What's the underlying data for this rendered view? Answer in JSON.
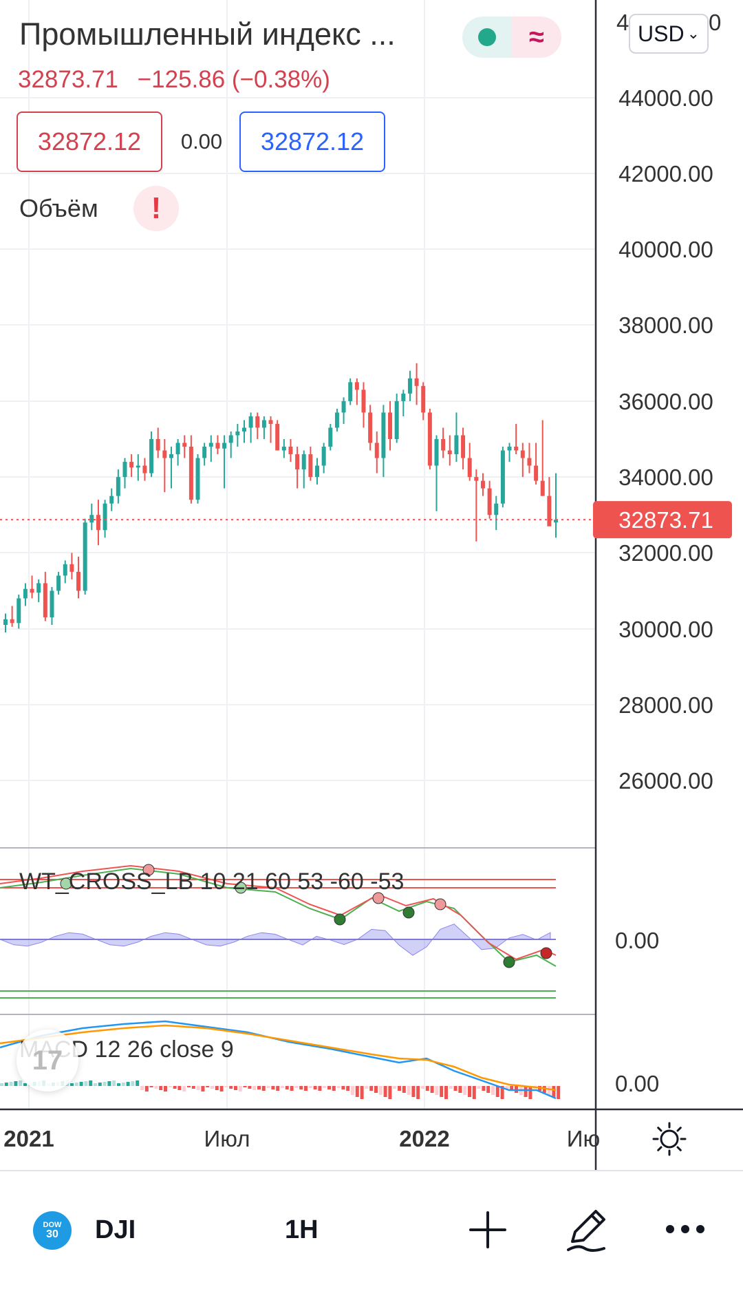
{
  "instrument": {
    "title": "Промышленный индекс ...",
    "last_price": "32873.71",
    "change": "−125.86 (−0.38%)",
    "bid": "32872.12",
    "spread": "0.00",
    "ask": "32872.12",
    "currency": "USD",
    "volume_label": "Объём"
  },
  "colors": {
    "up": "#26a69a",
    "down": "#ef5350",
    "price_tag": "#ef5350",
    "accent_blue": "#2962ff"
  },
  "price_axis": {
    "ticks": [
      "44000.00",
      "42000.00",
      "40000.00",
      "38000.00",
      "36000.00",
      "34000.00",
      "32000.00",
      "30000.00",
      "28000.00",
      "26000.00"
    ],
    "partial_top_tick": "4",
    "partial_top_tick_end": "0",
    "current_tag": "32873.71"
  },
  "time_axis": {
    "labels": [
      "2021",
      "Июл",
      "2022",
      "Ию"
    ]
  },
  "indicators": {
    "wt_label": "WT_CROSS_LB 10 21 60 53 -60 -53",
    "wt_zero": "0.00",
    "macd_label": "MACD 12 26 close 9",
    "macd_zero": "0.00"
  },
  "bottom_bar": {
    "logo_top": "DOW",
    "logo_bottom": "30",
    "symbol": "DJI",
    "interval": "1H",
    "icons": [
      "plus-icon",
      "pencil-icon",
      "more-icon"
    ]
  },
  "chart_data": {
    "type": "candlestick",
    "y_range": [
      24500,
      45500
    ],
    "last_price": 32873.71,
    "candles": [
      [
        30100,
        30400,
        29900,
        30250
      ],
      [
        30250,
        30600,
        30050,
        30150
      ],
      [
        30150,
        30900,
        30000,
        30800
      ],
      [
        30800,
        31200,
        30600,
        31050
      ],
      [
        31050,
        31400,
        30800,
        30950
      ],
      [
        30950,
        31300,
        30700,
        31200
      ],
      [
        31200,
        31500,
        30200,
        30300
      ],
      [
        30300,
        31100,
        30100,
        31000
      ],
      [
        31000,
        31500,
        30900,
        31400
      ],
      [
        31400,
        31800,
        31200,
        31700
      ],
      [
        31700,
        32000,
        31300,
        31500
      ],
      [
        31500,
        31900,
        30800,
        31000
      ],
      [
        31000,
        32900,
        30900,
        32800
      ],
      [
        32800,
        33300,
        32600,
        33000
      ],
      [
        33000,
        33400,
        32200,
        32600
      ],
      [
        32600,
        33400,
        32400,
        33300
      ],
      [
        33300,
        33700,
        33100,
        33500
      ],
      [
        33500,
        34200,
        33300,
        34000
      ],
      [
        34000,
        34500,
        33700,
        34400
      ],
      [
        34400,
        34600,
        34000,
        34250
      ],
      [
        34250,
        34600,
        33900,
        34300
      ],
      [
        34300,
        34500,
        33900,
        34100
      ],
      [
        34100,
        35200,
        34000,
        35000
      ],
      [
        35000,
        35300,
        34500,
        34700
      ],
      [
        34700,
        35000,
        33600,
        34500
      ],
      [
        34500,
        34800,
        33700,
        34600
      ],
      [
        34600,
        35000,
        34300,
        34900
      ],
      [
        34900,
        35100,
        34500,
        34800
      ],
      [
        34800,
        35100,
        33300,
        33400
      ],
      [
        33400,
        34600,
        33300,
        34500
      ],
      [
        34500,
        34900,
        34300,
        34800
      ],
      [
        34800,
        35100,
        34400,
        34900
      ],
      [
        34900,
        35100,
        34600,
        34750
      ],
      [
        34750,
        35100,
        33700,
        34900
      ],
      [
        34900,
        35200,
        34500,
        35100
      ],
      [
        35100,
        35400,
        34800,
        35200
      ],
      [
        35200,
        35500,
        34900,
        35300
      ],
      [
        35300,
        35700,
        34900,
        35600
      ],
      [
        35600,
        35700,
        35000,
        35300
      ],
      [
        35300,
        35600,
        35000,
        35500
      ],
      [
        35500,
        35600,
        34900,
        35400
      ],
      [
        35400,
        35500,
        34700,
        34700
      ],
      [
        34700,
        35000,
        34500,
        34800
      ],
      [
        34800,
        35000,
        34400,
        34600
      ],
      [
        34600,
        34800,
        33700,
        34200
      ],
      [
        34200,
        34700,
        33700,
        34600
      ],
      [
        34600,
        34800,
        33900,
        34000
      ],
      [
        34000,
        34500,
        33800,
        34300
      ],
      [
        34300,
        34900,
        34100,
        34800
      ],
      [
        34800,
        35400,
        34700,
        35300
      ],
      [
        35300,
        35800,
        35200,
        35700
      ],
      [
        35700,
        36100,
        35400,
        36000
      ],
      [
        36000,
        36600,
        35900,
        36500
      ],
      [
        36500,
        36600,
        35900,
        36300
      ],
      [
        36300,
        36500,
        35300,
        35700
      ],
      [
        35700,
        35900,
        34700,
        34900
      ],
      [
        34900,
        35200,
        34100,
        34500
      ],
      [
        34500,
        35900,
        34000,
        35700
      ],
      [
        35700,
        36000,
        34700,
        35000
      ],
      [
        35000,
        36200,
        34900,
        36000
      ],
      [
        36000,
        36300,
        35600,
        36200
      ],
      [
        36200,
        36800,
        36000,
        36600
      ],
      [
        36600,
        37000,
        35900,
        36400
      ],
      [
        36400,
        36500,
        35500,
        35700
      ],
      [
        35700,
        35800,
        34200,
        34300
      ],
      [
        34300,
        35100,
        33100,
        35000
      ],
      [
        35000,
        35300,
        34500,
        34700
      ],
      [
        34700,
        35100,
        34300,
        34600
      ],
      [
        34600,
        35700,
        34400,
        35100
      ],
      [
        35100,
        35300,
        34200,
        34500
      ],
      [
        34500,
        34900,
        33900,
        34000
      ],
      [
        34000,
        34200,
        32300,
        33900
      ],
      [
        33900,
        34100,
        33500,
        33700
      ],
      [
        33700,
        33900,
        32900,
        33000
      ],
      [
        33000,
        33500,
        32600,
        33300
      ],
      [
        33300,
        34800,
        33200,
        34700
      ],
      [
        34700,
        34900,
        34400,
        34800
      ],
      [
        34800,
        35400,
        34600,
        34700
      ],
      [
        34700,
        34900,
        34000,
        34500
      ],
      [
        34500,
        34900,
        34100,
        34300
      ],
      [
        34300,
        34900,
        33800,
        33900
      ],
      [
        33900,
        35500,
        33500,
        33500
      ],
      [
        33500,
        34000,
        32800,
        32700
      ],
      [
        32800,
        34100,
        32400,
        32874
      ]
    ],
    "wt_levels": [
      60,
      53,
      -60,
      -53
    ],
    "macd": {
      "fast": 12,
      "slow": 26,
      "source": "close",
      "signal": 9
    }
  }
}
